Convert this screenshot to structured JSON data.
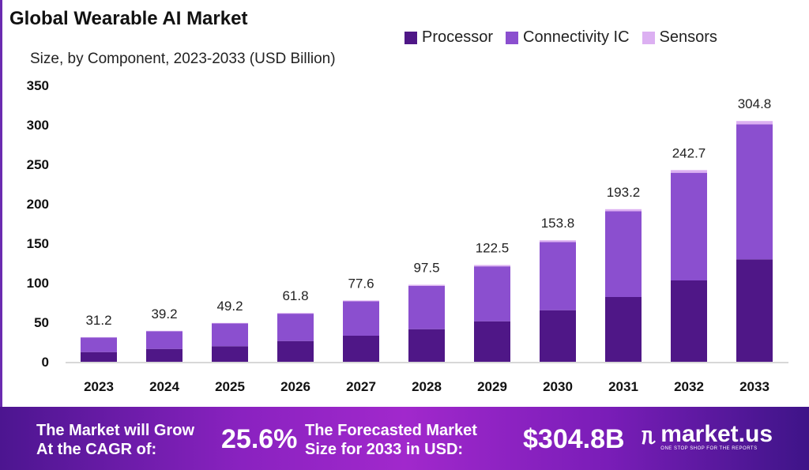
{
  "chart_data": {
    "type": "bar",
    "stacked": true,
    "title": "Global Wearable AI Market",
    "subtitle": "Size, by Component, 2023-2033 (USD Billion)",
    "xlabel": "",
    "ylabel": "",
    "ylim": [
      0,
      350
    ],
    "yticks": [
      0,
      50,
      100,
      150,
      200,
      250,
      300,
      350
    ],
    "grid": false,
    "legend_position": "top-right",
    "categories": [
      "2023",
      "2024",
      "2025",
      "2026",
      "2027",
      "2028",
      "2029",
      "2030",
      "2031",
      "2032",
      "2033"
    ],
    "totals": [
      "31.2",
      "39.2",
      "49.2",
      "61.8",
      "77.6",
      "97.5",
      "122.5",
      "153.8",
      "193.2",
      "242.7",
      "304.8"
    ],
    "series": [
      {
        "name": "Processor",
        "color": "#4f1787",
        "values": [
          12.3,
          16.3,
          19.7,
          26.3,
          33.0,
          41.3,
          51.3,
          65.3,
          82.0,
          103.0,
          129.7
        ]
      },
      {
        "name": "Connectivity IC",
        "color": "#8b4fcf",
        "values": [
          18.5,
          22.4,
          28.8,
          34.6,
          43.5,
          54.8,
          69.5,
          86.3,
          108.5,
          136.3,
          170.8
        ]
      },
      {
        "name": "Sensors",
        "color": "#dcb0f2",
        "values": [
          0.4,
          0.5,
          0.7,
          0.9,
          1.1,
          1.4,
          1.7,
          2.2,
          2.7,
          3.4,
          4.3
        ]
      }
    ]
  },
  "footer": {
    "cagr_label_1": "The Market will Grow",
    "cagr_label_2": "At the CAGR of:",
    "cagr_value": "25.6%",
    "forecast_label_1": "The Forecasted Market",
    "forecast_label_2": "Size for 2033 in USD:",
    "forecast_value": "$304.8B",
    "logo_name": "market.us",
    "logo_tagline": "ONE STOP SHOP FOR THE REPORTS"
  }
}
